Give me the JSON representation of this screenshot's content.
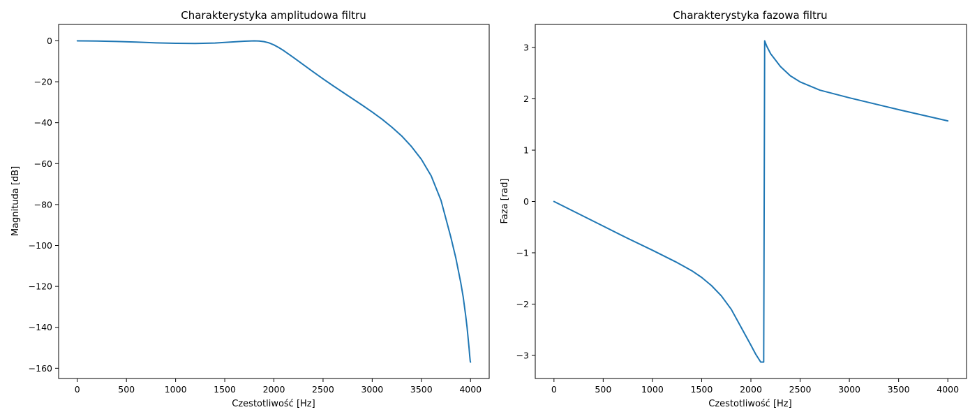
{
  "chart_data": [
    {
      "type": "line",
      "title": "Charakterystyka amplitudowa filtru",
      "xlabel": "Czestotliwość [Hz]",
      "ylabel": "Magnituda [dB]",
      "xlim": [
        -190,
        4190
      ],
      "ylim": [
        -165,
        8
      ],
      "xticks": [
        0,
        500,
        1000,
        1500,
        2000,
        2500,
        3000,
        3500,
        4000
      ],
      "yticks": [
        0,
        -20,
        -40,
        -60,
        -80,
        -100,
        -120,
        -140,
        -160
      ],
      "ytick_labels": [
        "0",
        "−20",
        "−40",
        "−60",
        "−80",
        "−100",
        "−120",
        "−140",
        "−160"
      ],
      "grid": false,
      "color": "#1f77b4",
      "series": [
        {
          "x": [
            0,
            200,
            400,
            600,
            800,
            1000,
            1200,
            1400,
            1600,
            1700,
            1800,
            1850,
            1900,
            1950,
            2000,
            2050,
            2100,
            2200,
            2300,
            2400,
            2500,
            2600,
            2700,
            2800,
            2900,
            3000,
            3100,
            3200,
            3300,
            3400,
            3500,
            3600,
            3700,
            3750,
            3800,
            3850,
            3900,
            3925,
            3950,
            3965,
            3975,
            3985,
            3992,
            3997,
            4000
          ],
          "y": [
            0,
            -0.1,
            -0.3,
            -0.6,
            -1.0,
            -1.2,
            -1.3,
            -1.1,
            -0.5,
            -0.2,
            0,
            -0.1,
            -0.4,
            -1.0,
            -2.0,
            -3.3,
            -4.8,
            -8.2,
            -11.7,
            -15.2,
            -18.6,
            -21.9,
            -25.1,
            -28.3,
            -31.5,
            -34.8,
            -38.3,
            -42.2,
            -46.5,
            -51.7,
            -57.9,
            -66.0,
            -78.0,
            -87.0,
            -96.0,
            -106.0,
            -118.0,
            -125.0,
            -134.0,
            -140.0,
            -145.0,
            -150.0,
            -154.0,
            -156.5,
            -157.0
          ]
        }
      ]
    },
    {
      "type": "line",
      "title": "Charakterystyka fazowa filtru",
      "xlabel": "Czestotliwość [Hz]",
      "ylabel": "Faza [rad]",
      "xlim": [
        -190,
        4190
      ],
      "ylim": [
        -3.45,
        3.45
      ],
      "xticks": [
        0,
        500,
        1000,
        1500,
        2000,
        2500,
        3000,
        3500,
        4000
      ],
      "yticks": [
        3,
        2,
        1,
        0,
        -1,
        -2,
        -3
      ],
      "ytick_labels": [
        "3",
        "2",
        "1",
        "0",
        "−1",
        "−2",
        "−3"
      ],
      "grid": false,
      "color": "#1f77b4",
      "series": [
        {
          "x": [
            0,
            250,
            500,
            750,
            1000,
            1250,
            1400,
            1500,
            1600,
            1700,
            1800,
            1900,
            2000,
            2050,
            2100,
            2130,
            2140,
            2160,
            2200,
            2300,
            2400,
            2500,
            2700,
            3000,
            3500,
            4000
          ],
          "y": [
            0,
            -0.24,
            -0.48,
            -0.72,
            -0.95,
            -1.19,
            -1.35,
            -1.48,
            -1.64,
            -1.84,
            -2.1,
            -2.45,
            -2.8,
            -2.98,
            -3.13,
            -3.13,
            3.13,
            3.03,
            2.88,
            2.63,
            2.45,
            2.33,
            2.17,
            2.02,
            1.79,
            1.57
          ]
        }
      ]
    }
  ]
}
